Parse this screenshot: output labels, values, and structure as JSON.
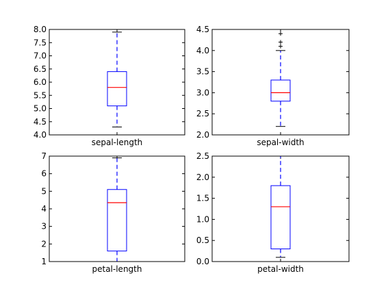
{
  "chart_data": [
    {
      "type": "box",
      "category": "sepal-length",
      "xlabel": "sepal-length",
      "ylim": [
        4.0,
        8.0
      ],
      "yticks": [
        "4.0",
        "4.5",
        "5.0",
        "5.5",
        "6.0",
        "6.5",
        "7.0",
        "7.5",
        "8.0"
      ],
      "whisker_low": 4.3,
      "q1": 5.1,
      "median": 5.8,
      "q3": 6.4,
      "whisker_high": 7.9,
      "outliers": []
    },
    {
      "type": "box",
      "category": "sepal-width",
      "xlabel": "sepal-width",
      "ylim": [
        2.0,
        4.5
      ],
      "yticks": [
        "2.0",
        "2.5",
        "3.0",
        "3.5",
        "4.0",
        "4.5"
      ],
      "whisker_low": 2.2,
      "q1": 2.8,
      "median": 3.0,
      "q3": 3.3,
      "whisker_high": 4.0,
      "outliers": [
        4.1,
        4.2,
        4.4
      ]
    },
    {
      "type": "box",
      "category": "petal-length",
      "xlabel": "petal-length",
      "ylim": [
        1,
        7
      ],
      "yticks": [
        "1",
        "2",
        "3",
        "4",
        "5",
        "6",
        "7"
      ],
      "whisker_low": 1.0,
      "q1": 1.6,
      "median": 4.35,
      "q3": 5.1,
      "whisker_high": 6.9,
      "outliers": []
    },
    {
      "type": "box",
      "category": "petal-width",
      "xlabel": "petal-width",
      "ylim": [
        0.0,
        2.5
      ],
      "yticks": [
        "0.0",
        "0.5",
        "1.0",
        "1.5",
        "2.0",
        "2.5"
      ],
      "whisker_low": 0.1,
      "q1": 0.3,
      "median": 1.3,
      "q3": 1.8,
      "whisker_high": 2.5,
      "outliers": []
    }
  ],
  "colors": {
    "box": "#0000ff",
    "median": "#ff0000",
    "cap": "#000000",
    "axes": "#000000",
    "background": "#ffffff"
  }
}
